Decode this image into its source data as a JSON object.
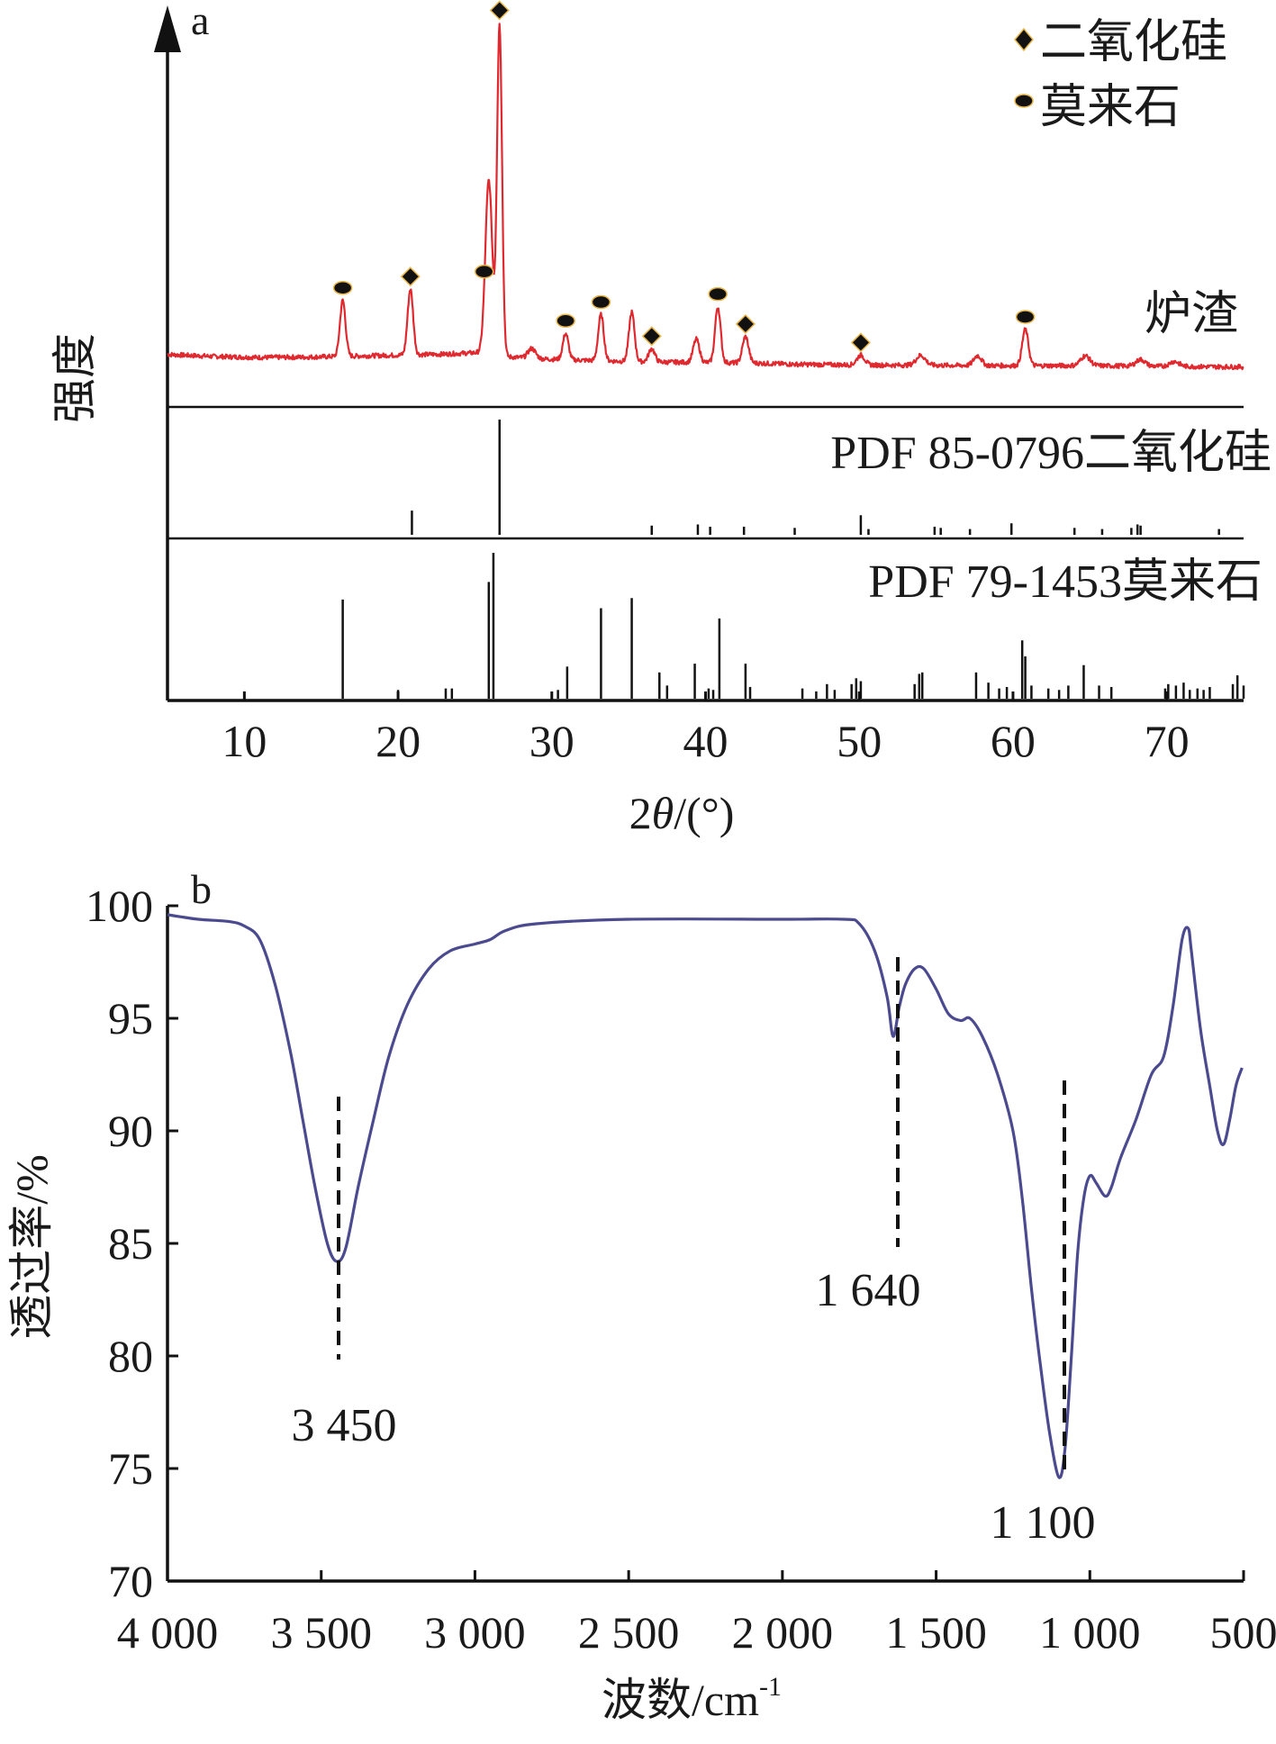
{
  "chart_data": [
    {
      "panel_label": "a",
      "type": "line",
      "xlabel_prefix": "2",
      "xlabel_symbol": "θ",
      "xlabel_suffix": "/(°)",
      "ylabel": "强度",
      "xlim": [
        5,
        75
      ],
      "x_ticks": [
        10,
        20,
        30,
        40,
        50,
        60,
        70
      ],
      "grid": false,
      "legend_position": "top-right",
      "legend": [
        {
          "marker": "diamond",
          "label": "二氧化硅"
        },
        {
          "marker": "ellipse",
          "label": "莫来石"
        }
      ],
      "series": [
        {
          "name": "炉渣",
          "color": "#e0282f",
          "baseline": 7.0,
          "points": [
            [
              5,
              7.2
            ],
            [
              8,
              6.6
            ],
            [
              11,
              6.3
            ],
            [
              14,
              6.4
            ],
            [
              16,
              6.6
            ],
            [
              20,
              7.0
            ],
            [
              23,
              7.3
            ],
            [
              25.3,
              7.8
            ],
            [
              26.2,
              8.6
            ],
            [
              27.2,
              6.5
            ],
            [
              29,
              5.9
            ],
            [
              31,
              5.6
            ],
            [
              34,
              5.2
            ],
            [
              37,
              4.9
            ],
            [
              40,
              4.8
            ],
            [
              43,
              4.6
            ],
            [
              46,
              4.2
            ],
            [
              50,
              4.0
            ],
            [
              55,
              3.9
            ],
            [
              60,
              3.8
            ],
            [
              65,
              3.8
            ],
            [
              70,
              3.6
            ],
            [
              75,
              3.4
            ]
          ],
          "peaks": [
            {
              "x": 16.4,
              "h": 17,
              "w": 0.18
            },
            {
              "x": 20.8,
              "h": 20,
              "w": 0.18
            },
            {
              "x": 25.9,
              "h": 52,
              "w": 0.22
            },
            {
              "x": 26.6,
              "h": 100,
              "w": 0.16
            },
            {
              "x": 28.7,
              "h": 3,
              "w": 0.25
            },
            {
              "x": 30.9,
              "h": 8,
              "w": 0.18
            },
            {
              "x": 33.2,
              "h": 14,
              "w": 0.18
            },
            {
              "x": 35.2,
              "h": 15,
              "w": 0.18
            },
            {
              "x": 36.5,
              "h": 4,
              "w": 0.2
            },
            {
              "x": 39.4,
              "h": 7,
              "w": 0.2
            },
            {
              "x": 40.8,
              "h": 17,
              "w": 0.18
            },
            {
              "x": 42.6,
              "h": 8,
              "w": 0.2
            },
            {
              "x": 50.1,
              "h": 3,
              "w": 0.25
            },
            {
              "x": 54.0,
              "h": 3,
              "w": 0.3
            },
            {
              "x": 57.7,
              "h": 3,
              "w": 0.25
            },
            {
              "x": 60.8,
              "h": 11,
              "w": 0.2
            },
            {
              "x": 64.7,
              "h": 3,
              "w": 0.3
            },
            {
              "x": 68.3,
              "h": 2,
              "w": 0.3
            },
            {
              "x": 70.5,
              "h": 1.5,
              "w": 0.3
            }
          ]
        }
      ],
      "markers": [
        {
          "x": 16.4,
          "type": "ellipse"
        },
        {
          "x": 20.8,
          "type": "diamond"
        },
        {
          "x": 25.6,
          "type": "ellipse"
        },
        {
          "x": 26.6,
          "type": "diamond"
        },
        {
          "x": 30.9,
          "type": "ellipse"
        },
        {
          "x": 33.2,
          "type": "ellipse"
        },
        {
          "x": 36.5,
          "type": "diamond"
        },
        {
          "x": 40.8,
          "type": "ellipse"
        },
        {
          "x": 42.6,
          "type": "diamond"
        },
        {
          "x": 50.1,
          "type": "diamond"
        },
        {
          "x": 60.8,
          "type": "ellipse"
        }
      ],
      "reference_patterns": [
        {
          "label": "PDF 85-0796二氧化硅",
          "lines": [
            [
              20.9,
              21
            ],
            [
              26.6,
              100
            ],
            [
              36.5,
              8
            ],
            [
              39.5,
              9
            ],
            [
              40.3,
              7
            ],
            [
              42.5,
              7
            ],
            [
              45.8,
              6
            ],
            [
              50.1,
              17
            ],
            [
              50.6,
              5
            ],
            [
              54.9,
              7
            ],
            [
              55.3,
              6
            ],
            [
              57.2,
              5
            ],
            [
              59.9,
              10
            ],
            [
              64.0,
              6
            ],
            [
              65.8,
              5
            ],
            [
              67.7,
              6
            ],
            [
              68.1,
              9
            ],
            [
              68.3,
              8
            ],
            [
              73.4,
              5
            ]
          ]
        },
        {
          "label": "PDF 79-1453莫来石",
          "lines": [
            [
              10.0,
              5
            ],
            [
              16.4,
              68
            ],
            [
              20.0,
              6
            ],
            [
              23.1,
              7
            ],
            [
              23.5,
              7
            ],
            [
              25.9,
              80
            ],
            [
              26.2,
              100
            ],
            [
              30.4,
              6
            ],
            [
              31.0,
              22
            ],
            [
              33.2,
              62
            ],
            [
              35.2,
              69
            ],
            [
              37.0,
              18
            ],
            [
              37.5,
              9
            ],
            [
              39.3,
              24
            ],
            [
              40.2,
              7
            ],
            [
              40.5,
              6
            ],
            [
              40.9,
              55
            ],
            [
              42.6,
              24
            ],
            [
              42.9,
              8
            ],
            [
              46.3,
              7
            ],
            [
              47.2,
              5
            ],
            [
              47.9,
              10
            ],
            [
              48.4,
              6
            ],
            [
              49.5,
              10
            ],
            [
              49.8,
              14
            ],
            [
              50.1,
              12
            ],
            [
              53.6,
              10
            ],
            [
              53.9,
              17
            ],
            [
              54.1,
              18
            ],
            [
              57.6,
              18
            ],
            [
              58.4,
              11
            ],
            [
              59.1,
              7
            ],
            [
              59.6,
              8
            ],
            [
              60.6,
              40
            ],
            [
              60.8,
              29
            ],
            [
              61.2,
              9
            ],
            [
              62.3,
              7
            ],
            [
              63.0,
              6
            ],
            [
              63.6,
              9
            ],
            [
              64.6,
              23
            ],
            [
              65.6,
              9
            ],
            [
              66.4,
              8
            ],
            [
              69.9,
              7
            ],
            [
              70.1,
              10
            ],
            [
              70.6,
              9
            ],
            [
              71.1,
              11
            ],
            [
              71.5,
              6
            ],
            [
              72.0,
              7
            ],
            [
              72.4,
              6
            ],
            [
              72.8,
              8
            ],
            [
              74.3,
              10
            ],
            [
              74.6,
              16
            ],
            [
              75.0,
              9
            ]
          ]
        }
      ]
    },
    {
      "panel_label": "b",
      "type": "line",
      "xlabel": "波数/cm",
      "xlabel_sup": "-1",
      "ylabel": "透过率/%",
      "xlim": [
        4000,
        500
      ],
      "ylim": [
        70,
        100
      ],
      "x_ticks": [
        4000,
        3500,
        3000,
        2500,
        2000,
        1500,
        1000,
        500
      ],
      "x_tick_labels": [
        "4 000",
        "3 500",
        "3 000",
        "2 500",
        "2 000",
        "1 500",
        "1 000",
        "500"
      ],
      "y_ticks": [
        70,
        75,
        80,
        85,
        90,
        95,
        100
      ],
      "y_tick_labels": [
        "70",
        "75",
        "80",
        "85",
        "90",
        "95",
        "100"
      ],
      "grid": false,
      "series": [
        {
          "name": "",
          "color": "#4b4a8f",
          "points": [
            [
              4000,
              99.6
            ],
            [
              3900,
              99.4
            ],
            [
              3800,
              99.3
            ],
            [
              3750,
              99.1
            ],
            [
              3700,
              98.5
            ],
            [
              3650,
              96.5
            ],
            [
              3600,
              93.5
            ],
            [
              3560,
              90.5
            ],
            [
              3520,
              87.5
            ],
            [
              3480,
              85.0
            ],
            [
              3450,
              84.2
            ],
            [
              3420,
              84.8
            ],
            [
              3380,
              87.5
            ],
            [
              3330,
              90.5
            ],
            [
              3280,
              93.3
            ],
            [
              3220,
              95.6
            ],
            [
              3150,
              97.2
            ],
            [
              3080,
              98.0
            ],
            [
              3000,
              98.3
            ],
            [
              2950,
              98.5
            ],
            [
              2900,
              98.9
            ],
            [
              2800,
              99.2
            ],
            [
              2500,
              99.4
            ],
            [
              2000,
              99.4
            ],
            [
              1800,
              99.4
            ],
            [
              1750,
              99.2
            ],
            [
              1700,
              98.0
            ],
            [
              1660,
              96.0
            ],
            [
              1640,
              94.2
            ],
            [
              1620,
              95.5
            ],
            [
              1600,
              96.5
            ],
            [
              1570,
              97.2
            ],
            [
              1540,
              97.2
            ],
            [
              1500,
              96.3
            ],
            [
              1460,
              95.2
            ],
            [
              1420,
              94.9
            ],
            [
              1390,
              95.0
            ],
            [
              1350,
              94.2
            ],
            [
              1300,
              92.5
            ],
            [
              1250,
              90.0
            ],
            [
              1220,
              87.0
            ],
            [
              1190,
              83.0
            ],
            [
              1160,
              79.5
            ],
            [
              1130,
              76.5
            ],
            [
              1100,
              74.6
            ],
            [
              1080,
              76.0
            ],
            [
              1060,
              80.0
            ],
            [
              1040,
              84.5
            ],
            [
              1020,
              87.0
            ],
            [
              1000,
              88.0
            ],
            [
              980,
              87.7
            ],
            [
              950,
              87.1
            ],
            [
              930,
              87.5
            ],
            [
              900,
              88.8
            ],
            [
              850,
              90.5
            ],
            [
              800,
              92.5
            ],
            [
              760,
              93.3
            ],
            [
              730,
              95.5
            ],
            [
              700,
              98.5
            ],
            [
              680,
              99.0
            ],
            [
              670,
              98.0
            ],
            [
              640,
              94.5
            ],
            [
              610,
              92.0
            ],
            [
              585,
              90.0
            ],
            [
              565,
              89.4
            ],
            [
              545,
              90.5
            ],
            [
              525,
              92.0
            ],
            [
              505,
              92.8
            ]
          ]
        }
      ],
      "annotations": [
        {
          "x": 3450,
          "text": "3 450"
        },
        {
          "x": 1640,
          "text": "1 640"
        },
        {
          "x": 1100,
          "text": "1 100"
        }
      ]
    }
  ]
}
